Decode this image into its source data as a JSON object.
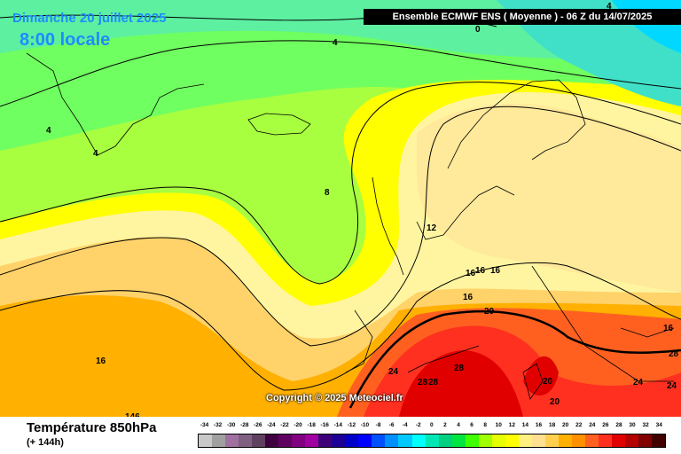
{
  "header": {
    "date": "Dimanche 20 juillet 2025",
    "time": "8:00 locale",
    "model_run": "Ensemble ECMWF ENS  ( Moyenne )  -  06 Z du 14/07/2025"
  },
  "footer": {
    "parameter": "Température 850hPa",
    "lead_time": "(+ 144h)",
    "copyright": "Copyright © 2025 Meteociel.fr"
  },
  "legend": {
    "labels": [
      "-34",
      "-32",
      "-30",
      "-28",
      "-26",
      "-24",
      "-22",
      "-20",
      "-18",
      "-16",
      "-14",
      "-12",
      "-10",
      "-8",
      "-6",
      "-4",
      "-2",
      "0",
      "2",
      "4",
      "6",
      "8",
      "10",
      "12",
      "14",
      "16",
      "18",
      "20",
      "22",
      "24",
      "26",
      "28",
      "30",
      "32",
      "34"
    ],
    "colors": [
      "#c8c8c8",
      "#a0a0a0",
      "#a070a0",
      "#806080",
      "#604060",
      "#400040",
      "#600060",
      "#800080",
      "#a000a0",
      "#3c0078",
      "#1e0096",
      "#0000c8",
      "#0000ff",
      "#0050ff",
      "#0090ff",
      "#00c8ff",
      "#00ffff",
      "#00e6b4",
      "#00d080",
      "#00e640",
      "#40ff00",
      "#a0ff00",
      "#e6ff00",
      "#ffff00",
      "#fff080",
      "#ffe090",
      "#ffd050",
      "#ffb000",
      "#ff9000",
      "#ff6020",
      "#ff3020",
      "#e00000",
      "#b40000",
      "#800000",
      "#400000"
    ]
  },
  "isotherm_labels": [
    {
      "text": "4"
    },
    {
      "text": "0"
    },
    {
      "text": "4"
    },
    {
      "text": "4"
    },
    {
      "text": "4"
    },
    {
      "text": "8"
    },
    {
      "text": "12"
    },
    {
      "text": "16"
    },
    {
      "text": "16"
    },
    {
      "text": "16"
    },
    {
      "text": "16"
    },
    {
      "text": "16"
    },
    {
      "text": "20"
    },
    {
      "text": "16"
    },
    {
      "text": "146"
    },
    {
      "text": "24"
    },
    {
      "text": "28"
    },
    {
      "text": "28"
    },
    {
      "text": "28"
    },
    {
      "text": "20"
    },
    {
      "text": "20"
    },
    {
      "text": "24"
    },
    {
      "text": "24"
    },
    {
      "text": "28"
    }
  ]
}
